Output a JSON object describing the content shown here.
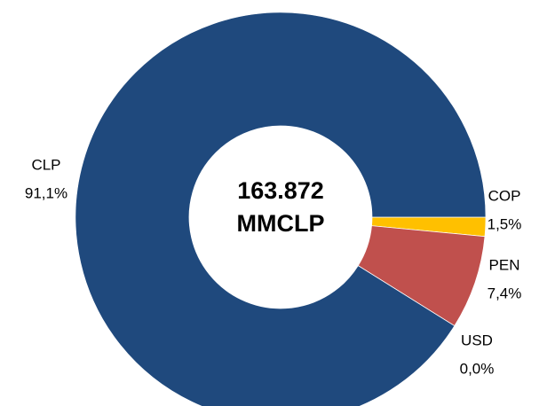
{
  "chart_data": {
    "type": "donut",
    "categories": [
      "COP",
      "PEN",
      "USD",
      "CLP"
    ],
    "values": [
      1.5,
      7.4,
      0.0,
      91.1
    ],
    "value_labels": [
      "1,5%",
      "7,4%",
      "0,0%",
      "91,1%"
    ],
    "colors": [
      "#ffc000",
      "#c0504d",
      "#9bbb59",
      "#1f497d"
    ],
    "center_value": "163.872",
    "center_unit": "MMCLP"
  }
}
